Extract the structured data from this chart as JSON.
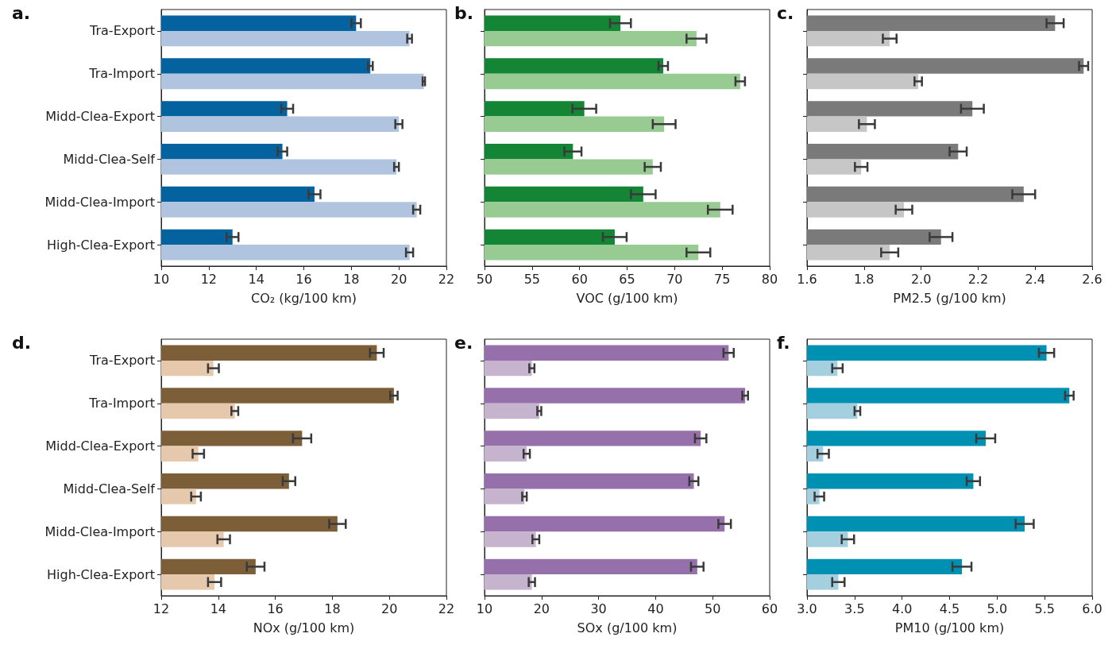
{
  "chart_data": [
    {
      "type": "bar",
      "orientation": "horizontal",
      "title": "a.",
      "xlabel": "CO₂ (kg/100 km)",
      "categories": [
        "Tra-Export",
        "Tra-Import",
        "Midd-Clea-Export",
        "Midd-Clea-Self",
        "Midd-Clea-Import",
        "High-Clea-Export"
      ],
      "xlim": [
        10,
        22
      ],
      "xticks": [
        10,
        12,
        14,
        16,
        18,
        20,
        22
      ],
      "series": [
        {
          "color": "#04639f",
          "values": [
            18.2,
            18.8,
            15.3,
            15.1,
            16.45,
            13.0
          ],
          "errors": [
            0.2,
            0.1,
            0.25,
            0.2,
            0.25,
            0.25
          ]
        },
        {
          "color": "#b0c4e0",
          "values": [
            20.45,
            21.05,
            20.0,
            19.9,
            20.75,
            20.45
          ],
          "errors": [
            0.1,
            0.05,
            0.15,
            0.1,
            0.15,
            0.15
          ]
        }
      ]
    },
    {
      "type": "bar",
      "orientation": "horizontal",
      "title": "b.",
      "xlabel": "VOC (g/100 km)",
      "tick_labels": "x",
      "categories": [
        null,
        null,
        null,
        null,
        null,
        null
      ],
      "xlim": [
        50,
        80
      ],
      "xticks": [
        50,
        55,
        60,
        65,
        70,
        75,
        80
      ],
      "series": [
        {
          "color": "#138535",
          "values": [
            64.3,
            68.8,
            60.5,
            59.3,
            66.7,
            63.7
          ],
          "errors": [
            1.1,
            0.5,
            1.25,
            0.9,
            1.3,
            1.25
          ]
        },
        {
          "color": "#98cb92",
          "values": [
            72.3,
            76.9,
            68.9,
            67.7,
            74.8,
            72.5
          ],
          "errors": [
            1.05,
            0.5,
            1.2,
            0.85,
            1.3,
            1.25
          ]
        }
      ]
    },
    {
      "type": "bar",
      "orientation": "horizontal",
      "title": "c.",
      "xlabel": "PM2.5 (g/100 km)",
      "tick_labels": "x",
      "categories": [
        null,
        null,
        null,
        null,
        null,
        null
      ],
      "xlim": [
        1.6,
        2.6
      ],
      "xticks": [
        1.6,
        1.8,
        {
          "value": 2,
          "label": "2.0"
        },
        2.2,
        2.4,
        2.6
      ],
      "series": [
        {
          "color": "#7a7a7a",
          "values": [
            2.47,
            2.57,
            2.18,
            2.13,
            2.36,
            2.07
          ],
          "errors": [
            0.03,
            0.016,
            0.04,
            0.03,
            0.04,
            0.04
          ]
        },
        {
          "color": "#c6c6c6",
          "values": [
            1.89,
            1.99,
            1.81,
            1.79,
            1.94,
            1.89
          ],
          "errors": [
            0.024,
            0.013,
            0.028,
            0.022,
            0.029,
            0.03
          ]
        }
      ]
    },
    {
      "type": "bar",
      "orientation": "horizontal",
      "title": "d.",
      "xlabel": "NOx (g/100 km)",
      "categories": [
        "Tra-Export",
        "Tra-Import",
        "Midd-Clea-Export",
        "Midd-Clea-Self",
        "Midd-Clea-Import",
        "High-Clea-Export"
      ],
      "xlim": [
        12,
        22
      ],
      "xticks": [
        12,
        14,
        16,
        18,
        20,
        22
      ],
      "series": [
        {
          "color": "#7c5f38",
          "values": [
            19.56,
            20.16,
            16.94,
            16.48,
            18.18,
            15.31
          ],
          "errors": [
            0.24,
            0.13,
            0.32,
            0.22,
            0.29,
            0.31
          ]
        },
        {
          "color": "#e6c9ad",
          "values": [
            13.83,
            14.58,
            13.3,
            13.22,
            14.19,
            13.87
          ],
          "errors": [
            0.19,
            0.12,
            0.2,
            0.17,
            0.22,
            0.23
          ]
        }
      ]
    },
    {
      "type": "bar",
      "orientation": "horizontal",
      "title": "e.",
      "xlabel": "SOx (g/100 km)",
      "tick_labels": "x",
      "categories": [
        null,
        null,
        null,
        null,
        null,
        null
      ],
      "xlim": [
        10,
        60
      ],
      "xticks": [
        10,
        20,
        30,
        40,
        50,
        60
      ],
      "series": [
        {
          "color": "#9670ab",
          "values": [
            52.8,
            55.7,
            47.9,
            46.7,
            52.1,
            47.3
          ],
          "errors": [
            0.9,
            0.5,
            1.0,
            0.8,
            1.1,
            1.1
          ]
        },
        {
          "color": "#c6b3cd",
          "values": [
            18.3,
            19.6,
            17.4,
            17.0,
            19.0,
            18.3
          ],
          "errors": [
            0.45,
            0.35,
            0.55,
            0.4,
            0.6,
            0.55
          ]
        }
      ]
    },
    {
      "type": "bar",
      "orientation": "horizontal",
      "title": "f.",
      "xlabel": "PM10 (g/100 km)",
      "tick_labels": "x",
      "categories": [
        null,
        null,
        null,
        null,
        null,
        null
      ],
      "xlim": [
        3,
        6
      ],
      "xticks": [
        {
          "value": 3,
          "label": "3.0"
        },
        3.5,
        {
          "value": 4,
          "label": "4.0"
        },
        4.5,
        {
          "value": 5,
          "label": "5.0"
        },
        5.5,
        {
          "value": 6,
          "label": "6.0"
        }
      ],
      "series": [
        {
          "color": "#0090b2",
          "values": [
            5.52,
            5.76,
            4.88,
            4.75,
            5.29,
            4.63
          ],
          "errors": [
            0.08,
            0.045,
            0.1,
            0.07,
            0.095,
            0.1
          ]
        },
        {
          "color": "#a3cfdf",
          "values": [
            3.32,
            3.53,
            3.17,
            3.13,
            3.43,
            3.33
          ],
          "errors": [
            0.055,
            0.03,
            0.06,
            0.05,
            0.065,
            0.065
          ]
        }
      ]
    }
  ]
}
